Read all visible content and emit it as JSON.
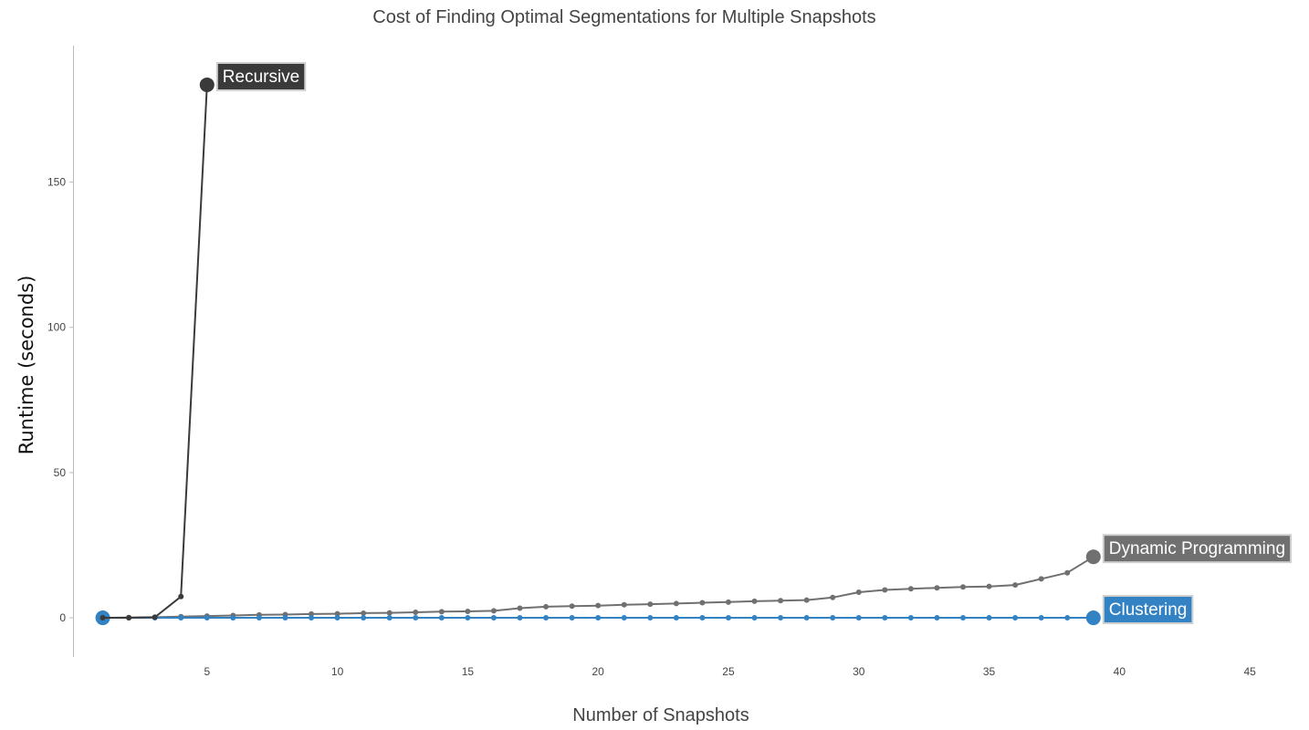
{
  "chart_data": {
    "type": "line",
    "title": "Cost of Finding Optimal Segmentations for Multiple Snapshots",
    "xlabel": "Number of Snapshots",
    "ylabel": "Runtime (seconds)",
    "xlim": [
      0,
      46.5
    ],
    "ylim": [
      -13.5,
      197
    ],
    "xticks": [
      5,
      10,
      15,
      20,
      25,
      30,
      35,
      40,
      45
    ],
    "yticks": [
      0,
      50,
      100,
      150
    ],
    "grid": false,
    "legend": "direct end-of-line labels",
    "series": [
      {
        "name": "Recursive",
        "color": "#3a3a3a",
        "x": [
          1,
          2,
          3,
          4,
          5
        ],
        "y": [
          0,
          0,
          0.2,
          7.3,
          183.5
        ]
      },
      {
        "name": "Dynamic Programming",
        "color": "#707070",
        "x": [
          1,
          2,
          3,
          4,
          5,
          6,
          7,
          8,
          9,
          10,
          11,
          12,
          13,
          14,
          15,
          16,
          17,
          18,
          19,
          20,
          21,
          22,
          23,
          24,
          25,
          26,
          27,
          28,
          29,
          30,
          31,
          32,
          33,
          34,
          35,
          36,
          37,
          38,
          39
        ],
        "y": [
          0,
          0.1,
          0.2,
          0.4,
          0.6,
          0.8,
          1.0,
          1.1,
          1.3,
          1.4,
          1.6,
          1.7,
          1.9,
          2.1,
          2.2,
          2.4,
          3.3,
          3.8,
          4.0,
          4.2,
          4.5,
          4.7,
          4.9,
          5.2,
          5.4,
          5.7,
          5.9,
          6.1,
          7.0,
          8.8,
          9.6,
          10.0,
          10.3,
          10.6,
          10.8,
          11.3,
          13.4,
          15.5,
          21.0
        ]
      },
      {
        "name": "Clustering",
        "color": "#3282c4",
        "x": [
          1,
          2,
          3,
          4,
          5,
          6,
          7,
          8,
          9,
          10,
          11,
          12,
          13,
          14,
          15,
          16,
          17,
          18,
          19,
          20,
          21,
          22,
          23,
          24,
          25,
          26,
          27,
          28,
          29,
          30,
          31,
          32,
          33,
          34,
          35,
          36,
          37,
          38,
          39
        ],
        "y": [
          0,
          0,
          0,
          0,
          0,
          0,
          0,
          0,
          0,
          0,
          0,
          0,
          0,
          0,
          0,
          0,
          0,
          0,
          0,
          0,
          0,
          0,
          0,
          0,
          0,
          0,
          0,
          0,
          0,
          0,
          0,
          0,
          0,
          0,
          0,
          0,
          0,
          0,
          0
        ]
      }
    ]
  }
}
